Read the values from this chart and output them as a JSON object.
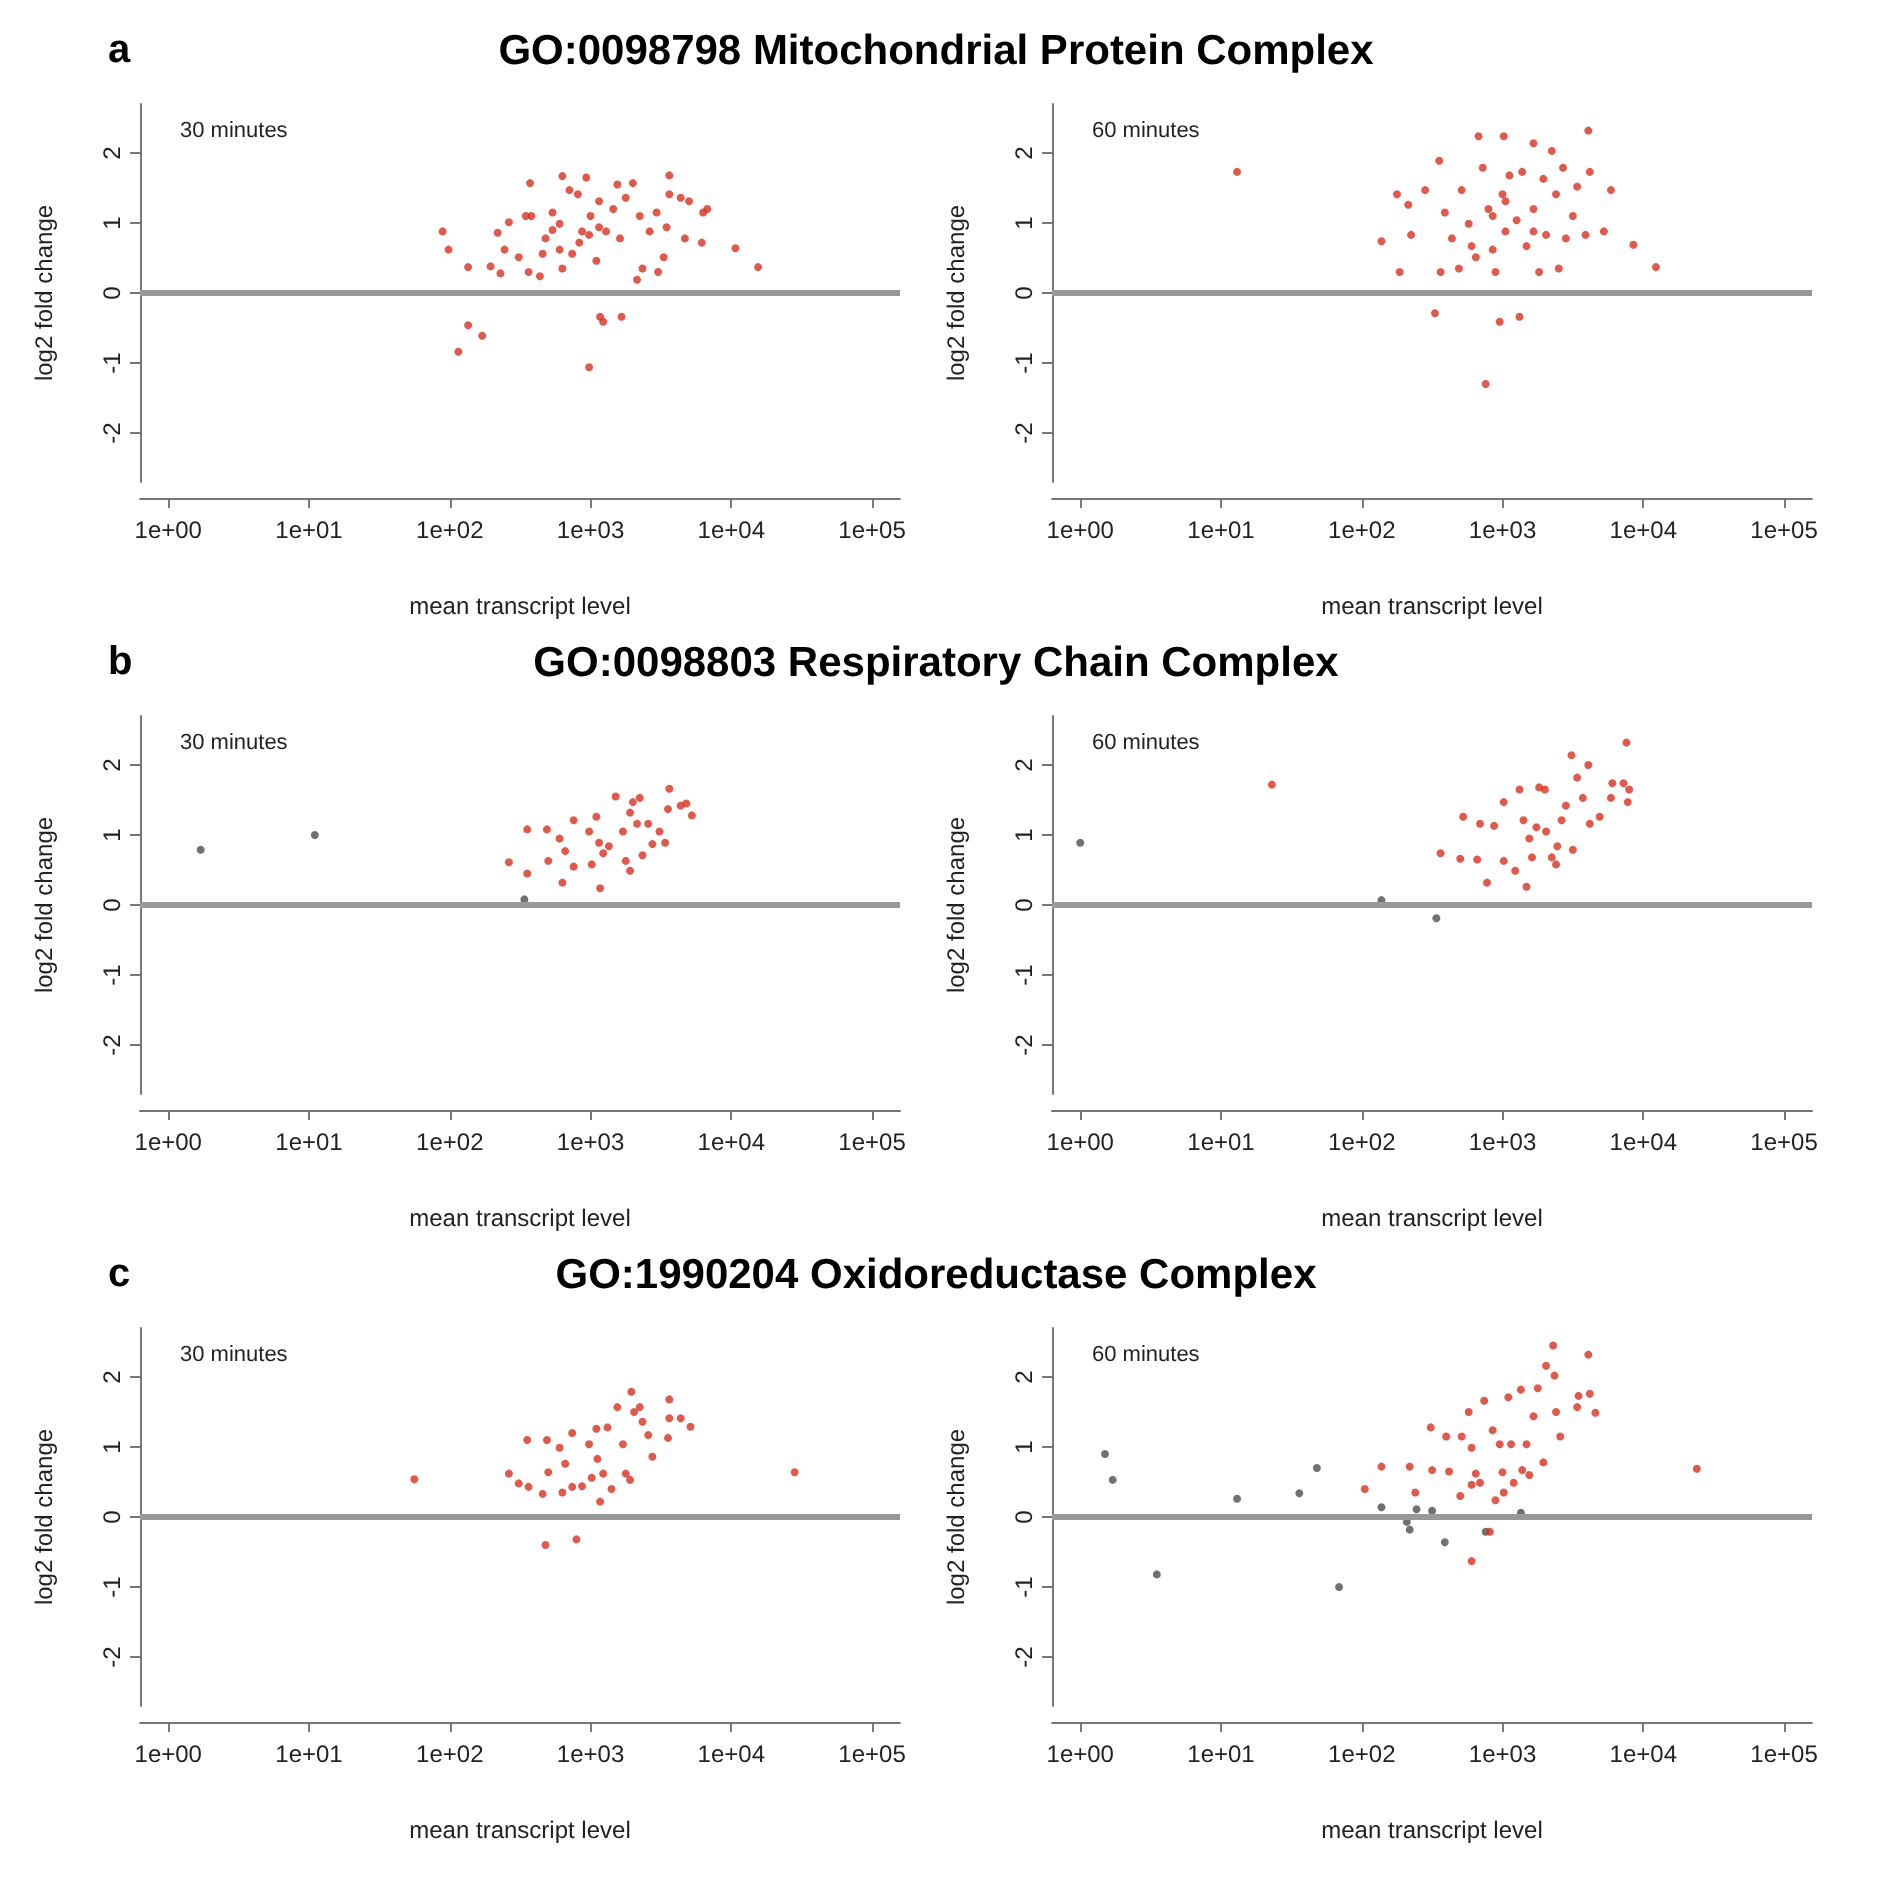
{
  "chart_data": [
    {
      "type": "scatter",
      "title": "GO:0098798 Mitochondrial Protein Complex",
      "annotations": [
        "a",
        "30 minutes"
      ],
      "xlabel": "mean transcript level",
      "ylabel": "log2 fold change",
      "log": "x",
      "xlim": [
        0.63,
        158000
      ],
      "xticks": [
        {
          "value": 1,
          "label": "1e+00"
        },
        {
          "value": 10,
          "label": "1e+01"
        },
        {
          "value": 100,
          "label": "1e+02"
        },
        {
          "value": 1000,
          "label": "1e+03"
        },
        {
          "value": 10000,
          "label": "1e+04"
        },
        {
          "value": 100000,
          "label": "1e+05"
        }
      ],
      "ylim": [
        -2.7,
        2.7
      ],
      "yticks": [
        -2,
        -1,
        0,
        1,
        2
      ],
      "grid": false,
      "marker": "circle",
      "ref_lines": [
        {
          "axis": "y",
          "value": 0,
          "color": "#999999"
        }
      ],
      "series": [
        {
          "color": "#d7301f",
          "x": [
            89,
            98,
            135,
            115,
            135,
            170,
            195,
            229,
            219,
            263,
            245,
            309,
            372,
            363,
            380,
            437,
            479,
            537,
            631,
            631,
            708,
            741,
            813,
            933,
            871,
            977,
            1000,
            1100,
            1150,
            1230,
            1170,
            1290,
            1450,
            1550,
            1620,
            1660,
            1780,
            2000,
            2140,
            2240,
            2340,
            2630,
            2950,
            3020,
            3310,
            3470,
            3630,
            3630,
            4370,
            4680,
            5010,
            6170,
            6310,
            6760,
            10700,
            15500,
            603,
            832,
            1150,
            603,
            977,
            537,
            347,
            457
          ],
          "values": [
            0.88,
            0.62,
            0.37,
            -0.84,
            -0.46,
            -0.61,
            0.38,
            0.28,
            0.86,
            1.01,
            0.62,
            0.51,
            1.57,
            0.3,
            1.1,
            0.24,
            0.78,
            1.15,
            1.67,
            0.35,
            1.47,
            0.56,
            1.41,
            1.65,
            0.88,
            -1.06,
            1.1,
            0.46,
            1.31,
            -0.41,
            -0.34,
            0.88,
            1.2,
            1.55,
            0.78,
            -0.34,
            1.36,
            1.57,
            0.19,
            1.1,
            0.35,
            0.88,
            1.15,
            0.3,
            0.51,
            0.94,
            1.68,
            1.41,
            1.36,
            0.78,
            1.31,
            0.72,
            1.15,
            1.2,
            0.64,
            0.37,
            0.99,
            0.72,
            0.94,
            0.62,
            0.83,
            0.9,
            1.1,
            0.56
          ]
        }
      ]
    },
    {
      "type": "scatter",
      "annotations": [
        "60 minutes"
      ],
      "xlabel": "mean transcript level",
      "ylabel": "log2 fold change",
      "log": "x",
      "xlim": [
        0.63,
        158000
      ],
      "xticks": [
        {
          "value": 1,
          "label": "1e+00"
        },
        {
          "value": 10,
          "label": "1e+01"
        },
        {
          "value": 100,
          "label": "1e+02"
        },
        {
          "value": 1000,
          "label": "1e+03"
        },
        {
          "value": 10000,
          "label": "1e+04"
        },
        {
          "value": 100000,
          "label": "1e+05"
        }
      ],
      "ylim": [
        -2.7,
        2.7
      ],
      "yticks": [
        -2,
        -1,
        0,
        1,
        2
      ],
      "grid": false,
      "marker": "circle",
      "ref_lines": [
        {
          "axis": "y",
          "value": 0,
          "color": "#999999"
        }
      ],
      "series": [
        {
          "color": "#d7301f",
          "x": [
            13,
            138,
            186,
            178,
            214,
            224,
            282,
            331,
            355,
            363,
            389,
            437,
            490,
            513,
            575,
            646,
            676,
            724,
            759,
            794,
            851,
            891,
            955,
            1000,
            1020,
            1050,
            1120,
            1260,
            1320,
            1380,
            1480,
            1660,
            1660,
            1820,
            1950,
            2040,
            2240,
            2400,
            2510,
            2690,
            2820,
            3160,
            3390,
            3890,
            4070,
            4170,
            5250,
            5890,
            8510,
            12300,
            603,
            1050,
            851,
            1660
          ],
          "values": [
            1.73,
            0.74,
            0.3,
            1.41,
            1.26,
            0.83,
            1.47,
            -0.29,
            1.89,
            0.3,
            1.15,
            0.78,
            0.35,
            1.47,
            0.99,
            0.51,
            2.24,
            1.79,
            -1.3,
            1.2,
            0.62,
            0.3,
            -0.41,
            1.41,
            2.24,
            0.88,
            1.68,
            1.04,
            -0.34,
            1.73,
            0.67,
            1.2,
            2.14,
            0.3,
            1.63,
            0.83,
            2.03,
            1.41,
            0.35,
            1.79,
            0.78,
            1.1,
            1.52,
            0.83,
            2.32,
            1.73,
            0.88,
            1.47,
            0.69,
            0.37,
            0.67,
            1.31,
            1.1,
            0.88
          ]
        }
      ]
    },
    {
      "type": "scatter",
      "title": "GO:0098803 Respiratory Chain Complex",
      "annotations": [
        "b",
        "30 minutes"
      ],
      "xlabel": "mean transcript level",
      "ylabel": "log2 fold change",
      "log": "x",
      "xlim": [
        0.63,
        158000
      ],
      "xticks": [
        {
          "value": 1,
          "label": "1e+00"
        },
        {
          "value": 10,
          "label": "1e+01"
        },
        {
          "value": 100,
          "label": "1e+02"
        },
        {
          "value": 1000,
          "label": "1e+03"
        },
        {
          "value": 10000,
          "label": "1e+04"
        },
        {
          "value": 100000,
          "label": "1e+05"
        }
      ],
      "ylim": [
        -2.7,
        2.7
      ],
      "yticks": [
        -2,
        -1,
        0,
        1,
        2
      ],
      "grid": false,
      "marker": "circle",
      "ref_lines": [
        {
          "axis": "y",
          "value": 0,
          "color": "#999999"
        }
      ],
      "series": [
        {
          "color": "#4d4d4d",
          "x": [
            1.7,
            11,
            339
          ],
          "values": [
            0.79,
            1.0,
            0.08
          ]
        },
        {
          "color": "#d7301f",
          "x": [
            263,
            355,
            355,
            490,
            501,
            603,
            631,
            661,
            759,
            759,
            977,
            1020,
            1100,
            1150,
            1170,
            1230,
            1350,
            1510,
            1700,
            1780,
            1910,
            2000,
            1910,
            2140,
            2240,
            2340,
            2570,
            2750,
            3090,
            3390,
            3550,
            3630,
            4370,
            4790,
            5250
          ],
          "values": [
            0.61,
            1.08,
            0.45,
            1.08,
            0.63,
            0.95,
            0.32,
            0.77,
            1.21,
            0.55,
            1.05,
            0.58,
            1.26,
            0.89,
            0.24,
            0.74,
            0.84,
            1.55,
            1.05,
            0.63,
            1.32,
            1.47,
            0.49,
            1.16,
            1.53,
            0.71,
            1.16,
            0.87,
            1.05,
            0.89,
            1.37,
            1.66,
            1.42,
            1.45,
            1.28
          ]
        }
      ]
    },
    {
      "type": "scatter",
      "annotations": [
        "60 minutes"
      ],
      "xlabel": "mean transcript level",
      "ylabel": "log2 fold change",
      "log": "x",
      "xlim": [
        0.63,
        158000
      ],
      "xticks": [
        {
          "value": 1,
          "label": "1e+00"
        },
        {
          "value": 10,
          "label": "1e+01"
        },
        {
          "value": 100,
          "label": "1e+02"
        },
        {
          "value": 1000,
          "label": "1e+03"
        },
        {
          "value": 10000,
          "label": "1e+04"
        },
        {
          "value": 100000,
          "label": "1e+05"
        }
      ],
      "ylim": [
        -2.7,
        2.7
      ],
      "yticks": [
        -2,
        -1,
        0,
        1,
        2
      ],
      "grid": false,
      "marker": "circle",
      "ref_lines": [
        {
          "axis": "y",
          "value": 0,
          "color": "#999999"
        }
      ],
      "series": [
        {
          "color": "#4d4d4d",
          "x": [
            1.0,
            138,
            339
          ],
          "values": [
            0.89,
            0.07,
            -0.19
          ]
        },
        {
          "color": "#d7301f",
          "x": [
            23,
            363,
            501,
            525,
            661,
            692,
            776,
            871,
            1020,
            1020,
            1230,
            1320,
            1410,
            1480,
            1550,
            1620,
            1740,
            1820,
            2000,
            2040,
            2240,
            2400,
            2450,
            2630,
            2820,
            3090,
            3160,
            3390,
            3720,
            4070,
            4170,
            4900,
            5890,
            6030,
            7240,
            7590,
            7760,
            7940
          ],
          "values": [
            1.72,
            0.74,
            0.66,
            1.26,
            0.65,
            1.16,
            0.32,
            1.13,
            0.63,
            1.47,
            0.49,
            1.65,
            1.21,
            0.26,
            0.95,
            0.68,
            1.11,
            1.68,
            1.65,
            1.05,
            0.68,
            0.58,
            0.84,
            1.21,
            1.42,
            2.14,
            0.79,
            1.82,
            1.53,
            2.0,
            1.16,
            1.26,
            1.53,
            1.74,
            1.74,
            2.32,
            1.47,
            1.65
          ]
        }
      ]
    },
    {
      "type": "scatter",
      "title": "GO:1990204 Oxidoreductase Complex",
      "annotations": [
        "c",
        "30 minutes"
      ],
      "xlabel": "mean transcript level",
      "ylabel": "log2 fold change",
      "log": "x",
      "xlim": [
        0.63,
        158000
      ],
      "xticks": [
        {
          "value": 1,
          "label": "1e+00"
        },
        {
          "value": 10,
          "label": "1e+01"
        },
        {
          "value": 100,
          "label": "1e+02"
        },
        {
          "value": 1000,
          "label": "1e+03"
        },
        {
          "value": 10000,
          "label": "1e+04"
        },
        {
          "value": 100000,
          "label": "1e+05"
        }
      ],
      "ylim": [
        -2.7,
        2.7
      ],
      "yticks": [
        -2,
        -1,
        0,
        1,
        2
      ],
      "grid": false,
      "marker": "circle",
      "ref_lines": [
        {
          "axis": "y",
          "value": 0,
          "color": "#999999"
        }
      ],
      "series": [
        {
          "color": "#d7301f",
          "x": [
            56,
            263,
            309,
            355,
            363,
            457,
            479,
            490,
            501,
            603,
            631,
            661,
            741,
            741,
            794,
            871,
            977,
            1020,
            1100,
            1120,
            1170,
            1230,
            1320,
            1410,
            1550,
            1700,
            1780,
            1910,
            1950,
            2040,
            2240,
            2340,
            2570,
            2750,
            3630,
            3630,
            3550,
            4370,
            5130,
            28200
          ],
          "values": [
            0.54,
            0.62,
            0.48,
            1.1,
            0.43,
            0.33,
            -0.4,
            1.1,
            0.64,
            0.99,
            0.35,
            0.76,
            1.2,
            0.43,
            -0.32,
            0.44,
            1.04,
            0.56,
            1.26,
            0.83,
            0.22,
            0.62,
            1.28,
            0.4,
            1.57,
            1.04,
            0.62,
            0.53,
            1.79,
            1.5,
            1.57,
            1.36,
            1.17,
            0.86,
            1.68,
            1.41,
            1.13,
            1.41,
            1.29,
            0.64
          ]
        }
      ]
    },
    {
      "type": "scatter",
      "annotations": [
        "60 minutes"
      ],
      "xlabel": "mean transcript level",
      "ylabel": "log2 fold change",
      "log": "x",
      "xlim": [
        0.63,
        158000
      ],
      "xticks": [
        {
          "value": 1,
          "label": "1e+00"
        },
        {
          "value": 10,
          "label": "1e+01"
        },
        {
          "value": 100,
          "label": "1e+02"
        },
        {
          "value": 1000,
          "label": "1e+03"
        },
        {
          "value": 10000,
          "label": "1e+04"
        },
        {
          "value": 100000,
          "label": "1e+05"
        }
      ],
      "ylim": [
        -2.7,
        2.7
      ],
      "yticks": [
        -2,
        -1,
        0,
        1,
        2
      ],
      "grid": false,
      "marker": "circle",
      "ref_lines": [
        {
          "axis": "y",
          "value": 0,
          "color": "#999999"
        }
      ],
      "series": [
        {
          "color": "#4d4d4d",
          "x": [
            1.5,
            1.7,
            3.5,
            13,
            36,
            48,
            69,
            138,
            209,
            219,
            245,
            316,
            389,
            759,
            1350
          ],
          "values": [
            0.9,
            0.53,
            -0.82,
            0.26,
            0.34,
            0.7,
            -1.0,
            0.14,
            -0.07,
            -0.18,
            0.11,
            0.09,
            -0.36,
            -0.21,
            0.06
          ]
        },
        {
          "color": "#d7301f",
          "x": [
            105,
            138,
            219,
            240,
            309,
            316,
            398,
            417,
            501,
            513,
            575,
            603,
            603,
            603,
            646,
            692,
            741,
            813,
            851,
            891,
            955,
            1000,
            1020,
            1100,
            1150,
            1200,
            1350,
            1380,
            1480,
            1550,
            1660,
            1780,
            1950,
            2040,
            2290,
            2340,
            2400,
            2570,
            3390,
            3470,
            4070,
            4170,
            4570,
            24000
          ],
          "values": [
            0.4,
            0.72,
            0.72,
            0.35,
            1.28,
            0.67,
            1.15,
            0.65,
            0.3,
            1.15,
            1.5,
            0.99,
            -0.63,
            0.46,
            0.62,
            0.49,
            1.66,
            -0.21,
            1.24,
            0.24,
            1.04,
            0.64,
            0.35,
            1.71,
            1.04,
            0.49,
            1.82,
            0.67,
            1.04,
            0.6,
            1.44,
            1.84,
            0.78,
            2.16,
            2.45,
            2.02,
            1.5,
            1.15,
            1.57,
            1.73,
            2.32,
            1.76,
            1.49,
            0.69
          ]
        }
      ]
    }
  ]
}
